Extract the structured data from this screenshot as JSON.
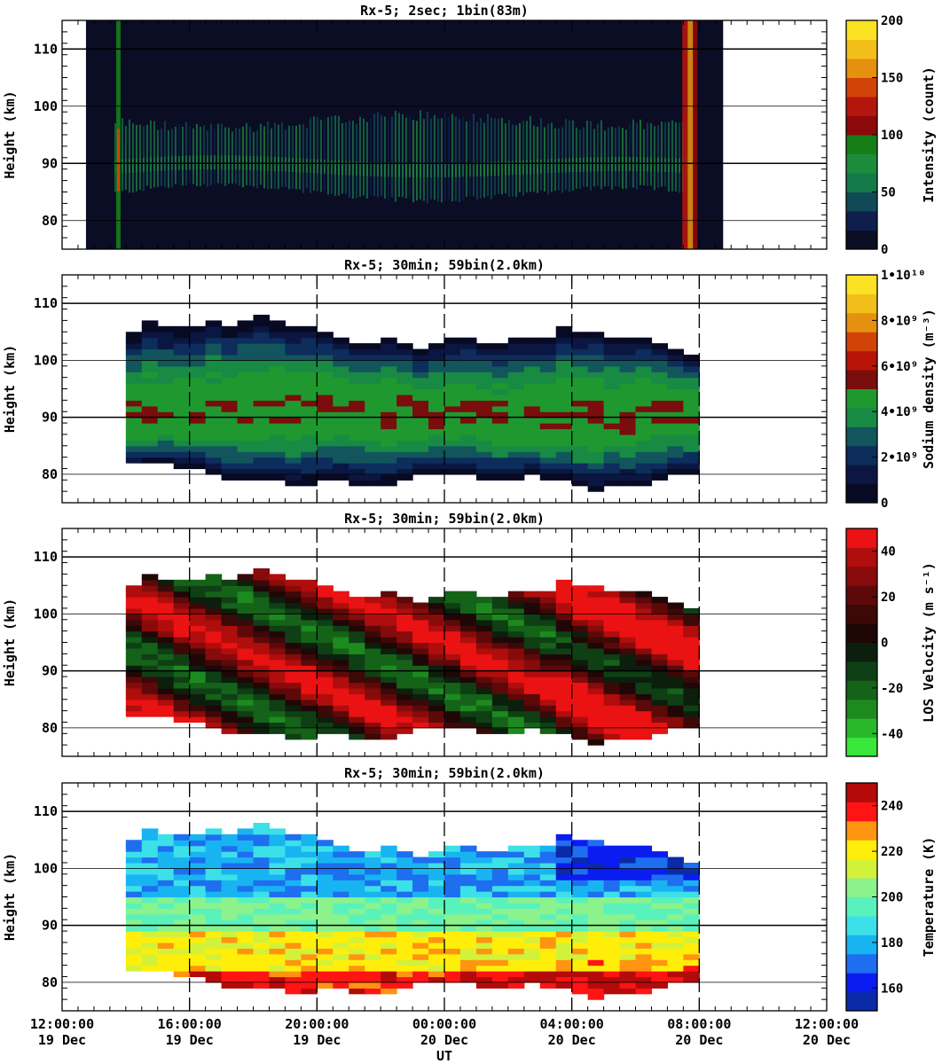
{
  "chart_data": [
    {
      "type": "heatmap",
      "title": "Rx-5;  2sec; 1bin(83m)",
      "ylabel": "Height (km)",
      "xlabel": "",
      "ylim": [
        75,
        115
      ],
      "xlim": [
        "2024-12-19T12:00:00",
        "2024-12-20T12:00:00"
      ],
      "y_ticks": [
        80,
        90,
        100,
        110
      ],
      "x_ticks": [],
      "colorbar": {
        "label": "Intensity (count)",
        "range": [
          0,
          200
        ],
        "tick_values": [
          0,
          50,
          100,
          150,
          200
        ],
        "tick_labels": [
          "0",
          "50",
          "100",
          "150",
          "200"
        ],
        "colors": [
          "#0b0d25",
          "#0f1f4d",
          "#114a57",
          "#157a4a",
          "#1d8c3a",
          "#157e17",
          "#8c0909",
          "#b4150c",
          "#d2430a",
          "#e6900f",
          "#f2bf1a",
          "#fbe224"
        ]
      },
      "coverage": {
        "start": "2024-12-19T12:45:00",
        "end": "2024-12-20T08:45:00",
        "layer_km": [
          82,
          100
        ],
        "peak_km": 90
      }
    },
    {
      "type": "heatmap",
      "title": "Rx-5; 30min; 59bin(2.0km)",
      "ylabel": "Height (km)",
      "xlabel": "",
      "ylim": [
        75,
        115
      ],
      "xlim": [
        "2024-12-19T12:00:00",
        "2024-12-20T12:00:00"
      ],
      "y_ticks": [
        80,
        90,
        100,
        110
      ],
      "x_ticks": [],
      "colorbar": {
        "label": "Sodium density (m⁻³)",
        "range": [
          0,
          10000000000
        ],
        "tick_values": [
          0,
          2000000000,
          4000000000,
          6000000000,
          8000000000,
          10000000000
        ],
        "tick_labels": [
          "0",
          "2•10⁹",
          "4•10⁹",
          "6•10⁹",
          "8•10⁹",
          "1•10¹⁰"
        ],
        "colors": [
          "#080a24",
          "#0b1742",
          "#0d2d5c",
          "#12555c",
          "#188a44",
          "#1f992f",
          "#7a0d0d",
          "#b81408",
          "#d2430a",
          "#e6900f",
          "#f2bf1a",
          "#fbe224"
        ]
      },
      "profile": {
        "start": "2024-12-19T14:00:00",
        "end": "2024-12-20T08:00:00",
        "bin_minutes": 30,
        "bin_km": 2.0,
        "bottom_km": [
          82,
          82,
          82,
          81,
          81,
          80,
          79,
          79,
          79,
          79,
          78,
          78,
          79,
          79,
          78,
          78,
          78,
          79,
          80,
          80,
          80,
          80,
          79,
          79,
          79,
          80,
          79,
          79,
          78,
          77,
          78,
          78,
          78,
          79,
          80,
          80
        ],
        "top_km": [
          105,
          107,
          106,
          106,
          106,
          107,
          106,
          107,
          108,
          107,
          106,
          106,
          105,
          104,
          103,
          103,
          104,
          103,
          102,
          103,
          104,
          104,
          103,
          103,
          104,
          104,
          104,
          106,
          105,
          105,
          104,
          104,
          104,
          103,
          102,
          101
        ],
        "peak_km": [
          89,
          89,
          90,
          90,
          90,
          91,
          91,
          91,
          91,
          91,
          92,
          92,
          92,
          92,
          92,
          91,
          91,
          91,
          91,
          91,
          91,
          91,
          91,
          90,
          90,
          90,
          90,
          90,
          90,
          90,
          90,
          90,
          91,
          91,
          91,
          91
        ]
      }
    },
    {
      "type": "heatmap",
      "title": "Rx-5; 30min; 59bin(2.0km)",
      "ylabel": "Height (km)",
      "xlabel": "",
      "ylim": [
        75,
        115
      ],
      "xlim": [
        "2024-12-19T12:00:00",
        "2024-12-20T12:00:00"
      ],
      "y_ticks": [
        80,
        90,
        100,
        110
      ],
      "x_ticks": [],
      "colorbar": {
        "label": "LOS Velocity (m s⁻¹)",
        "range": [
          -50,
          50
        ],
        "tick_values": [
          -40,
          -20,
          0,
          20,
          40
        ],
        "tick_labels": [
          "-40",
          "-20",
          "0",
          "20",
          "40"
        ],
        "colors": [
          "#39e63a",
          "#2ab82b",
          "#1d8a1f",
          "#146318",
          "#0f3f14",
          "#0b1f0c",
          "#1f0707",
          "#3d0808",
          "#5e0909",
          "#870b0b",
          "#b00d0d",
          "#ea1212"
        ]
      },
      "profile": {
        "start": "2024-12-19T14:00:00",
        "end": "2024-12-20T08:00:00"
      }
    },
    {
      "type": "heatmap",
      "title": "Rx-5; 30min; 59bin(2.0km)",
      "ylabel": "Height (km)",
      "xlabel": "UT",
      "ylim": [
        75,
        115
      ],
      "xlim": [
        "2024-12-19T12:00:00",
        "2024-12-20T12:00:00"
      ],
      "y_ticks": [
        80,
        90,
        100,
        110
      ],
      "x_ticks": [
        {
          "time": "12:00:00",
          "date": "19 Dec"
        },
        {
          "time": "16:00:00",
          "date": "19 Dec"
        },
        {
          "time": "20:00:00",
          "date": "19 Dec"
        },
        {
          "time": "00:00:00",
          "date": "20 Dec"
        },
        {
          "time": "04:00:00",
          "date": "20 Dec"
        },
        {
          "time": "08:00:00",
          "date": "20 Dec"
        },
        {
          "time": "12:00:00",
          "date": "20 Dec"
        }
      ],
      "colorbar": {
        "label": "Temperature (K)",
        "range": [
          150,
          250
        ],
        "tick_values": [
          160,
          180,
          200,
          220,
          240
        ],
        "tick_labels": [
          "160",
          "180",
          "200",
          "220",
          "240"
        ],
        "colors": [
          "#0a2aa8",
          "#0b1cf0",
          "#1e6ef0",
          "#18b4f2",
          "#3ce0e8",
          "#5af2bc",
          "#8cf28c",
          "#d2f23a",
          "#ffee0a",
          "#ff9410",
          "#ff1414",
          "#b40a0a"
        ]
      },
      "profile": {
        "start": "2024-12-19T14:00:00",
        "end": "2024-12-20T08:00:00"
      }
    }
  ]
}
